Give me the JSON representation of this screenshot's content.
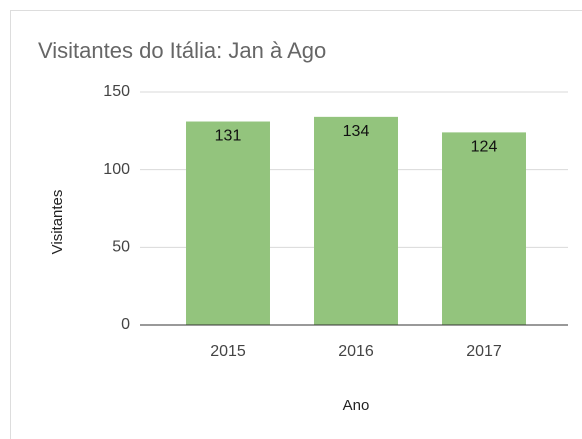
{
  "chart_data": {
    "type": "bar",
    "title": "Visitantes do Itália: Jan à Ago",
    "x_label": "Ano",
    "y_label": "Visitantes",
    "categories": [
      "2015",
      "2016",
      "2017"
    ],
    "values": [
      131,
      134,
      124
    ],
    "color": "#93c47d",
    "ylim": [
      0,
      150
    ],
    "yticks": [
      0,
      50,
      100,
      150
    ],
    "grid": true
  }
}
